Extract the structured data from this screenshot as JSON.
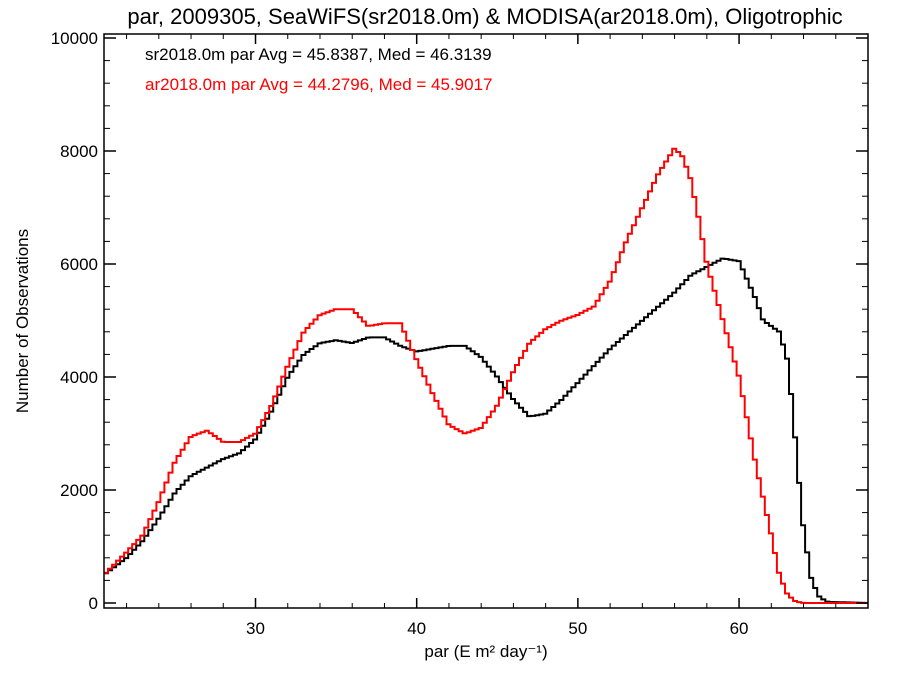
{
  "chart_data": {
    "type": "line",
    "title": "par, 2009305, SeaWiFS(sr2018.0m) & MODISA(ar2018.0m), Oligotrophic",
    "xlabel": "par (E m² day⁻¹)",
    "ylabel": "Number of Observations",
    "xlim": [
      20.6,
      68
    ],
    "ylim": [
      0,
      10000
    ],
    "x_ticks": [
      30,
      40,
      50,
      60
    ],
    "y_ticks": [
      0,
      2000,
      4000,
      6000,
      8000,
      10000
    ],
    "grid": false,
    "legend_position": "top-left",
    "series": [
      {
        "name": "sr2018.0m",
        "color": "#000000",
        "stats_label": "sr2018.0m par Avg = 45.8387, Med = 46.3139",
        "points": [
          [
            20.6,
            500
          ],
          [
            22,
            800
          ],
          [
            23,
            1100
          ],
          [
            24,
            1500
          ],
          [
            25,
            1950
          ],
          [
            26,
            2250
          ],
          [
            27,
            2400
          ],
          [
            28,
            2550
          ],
          [
            29,
            2650
          ],
          [
            30,
            2900
          ],
          [
            31,
            3400
          ],
          [
            32,
            4000
          ],
          [
            33,
            4400
          ],
          [
            34,
            4600
          ],
          [
            35,
            4650
          ],
          [
            36,
            4600
          ],
          [
            37,
            4700
          ],
          [
            38,
            4700
          ],
          [
            39,
            4550
          ],
          [
            40,
            4450
          ],
          [
            41,
            4500
          ],
          [
            42,
            4550
          ],
          [
            43,
            4550
          ],
          [
            44,
            4350
          ],
          [
            45,
            4000
          ],
          [
            46,
            3600
          ],
          [
            47,
            3300
          ],
          [
            48,
            3350
          ],
          [
            49,
            3600
          ],
          [
            50,
            3900
          ],
          [
            51,
            4200
          ],
          [
            52,
            4500
          ],
          [
            53,
            4750
          ],
          [
            54,
            5000
          ],
          [
            55,
            5250
          ],
          [
            56,
            5500
          ],
          [
            57,
            5800
          ],
          [
            58,
            5950
          ],
          [
            59,
            6100
          ],
          [
            60,
            6050
          ],
          [
            61,
            5400
          ],
          [
            61.5,
            5000
          ],
          [
            62,
            4900
          ],
          [
            62.5,
            4800
          ],
          [
            63,
            4300
          ],
          [
            63.3,
            3500
          ],
          [
            63.7,
            2200
          ],
          [
            64,
            1300
          ],
          [
            64.5,
            400
          ],
          [
            65,
            100
          ],
          [
            65.5,
            20
          ],
          [
            68,
            0
          ]
        ]
      },
      {
        "name": "ar2018.0m",
        "color": "#ff0000",
        "stats_label": "ar2018.0m par Avg = 44.2796, Med = 45.9017",
        "points": [
          [
            20.6,
            500
          ],
          [
            22,
            900
          ],
          [
            23,
            1200
          ],
          [
            24,
            1800
          ],
          [
            25,
            2500
          ],
          [
            26,
            2950
          ],
          [
            27,
            3050
          ],
          [
            28,
            2850
          ],
          [
            29,
            2850
          ],
          [
            30,
            3000
          ],
          [
            31,
            3500
          ],
          [
            32,
            4200
          ],
          [
            33,
            4800
          ],
          [
            34,
            5100
          ],
          [
            35,
            5200
          ],
          [
            36,
            5200
          ],
          [
            37,
            4900
          ],
          [
            38,
            4950
          ],
          [
            39,
            4950
          ],
          [
            40,
            4300
          ],
          [
            41,
            3700
          ],
          [
            42,
            3150
          ],
          [
            43,
            3000
          ],
          [
            44,
            3100
          ],
          [
            45,
            3500
          ],
          [
            46,
            4100
          ],
          [
            47,
            4600
          ],
          [
            48,
            4850
          ],
          [
            49,
            5000
          ],
          [
            50,
            5100
          ],
          [
            51,
            5250
          ],
          [
            52,
            5700
          ],
          [
            53,
            6400
          ],
          [
            54,
            7000
          ],
          [
            55,
            7600
          ],
          [
            56,
            8050
          ],
          [
            56.5,
            7900
          ],
          [
            57,
            7500
          ],
          [
            57.5,
            6800
          ],
          [
            58,
            6000
          ],
          [
            59,
            5000
          ],
          [
            60,
            4000
          ],
          [
            61,
            2500
          ],
          [
            62,
            1200
          ],
          [
            62.5,
            500
          ],
          [
            63,
            150
          ],
          [
            63.5,
            30
          ],
          [
            64,
            0
          ],
          [
            68,
            0
          ]
        ]
      }
    ]
  }
}
